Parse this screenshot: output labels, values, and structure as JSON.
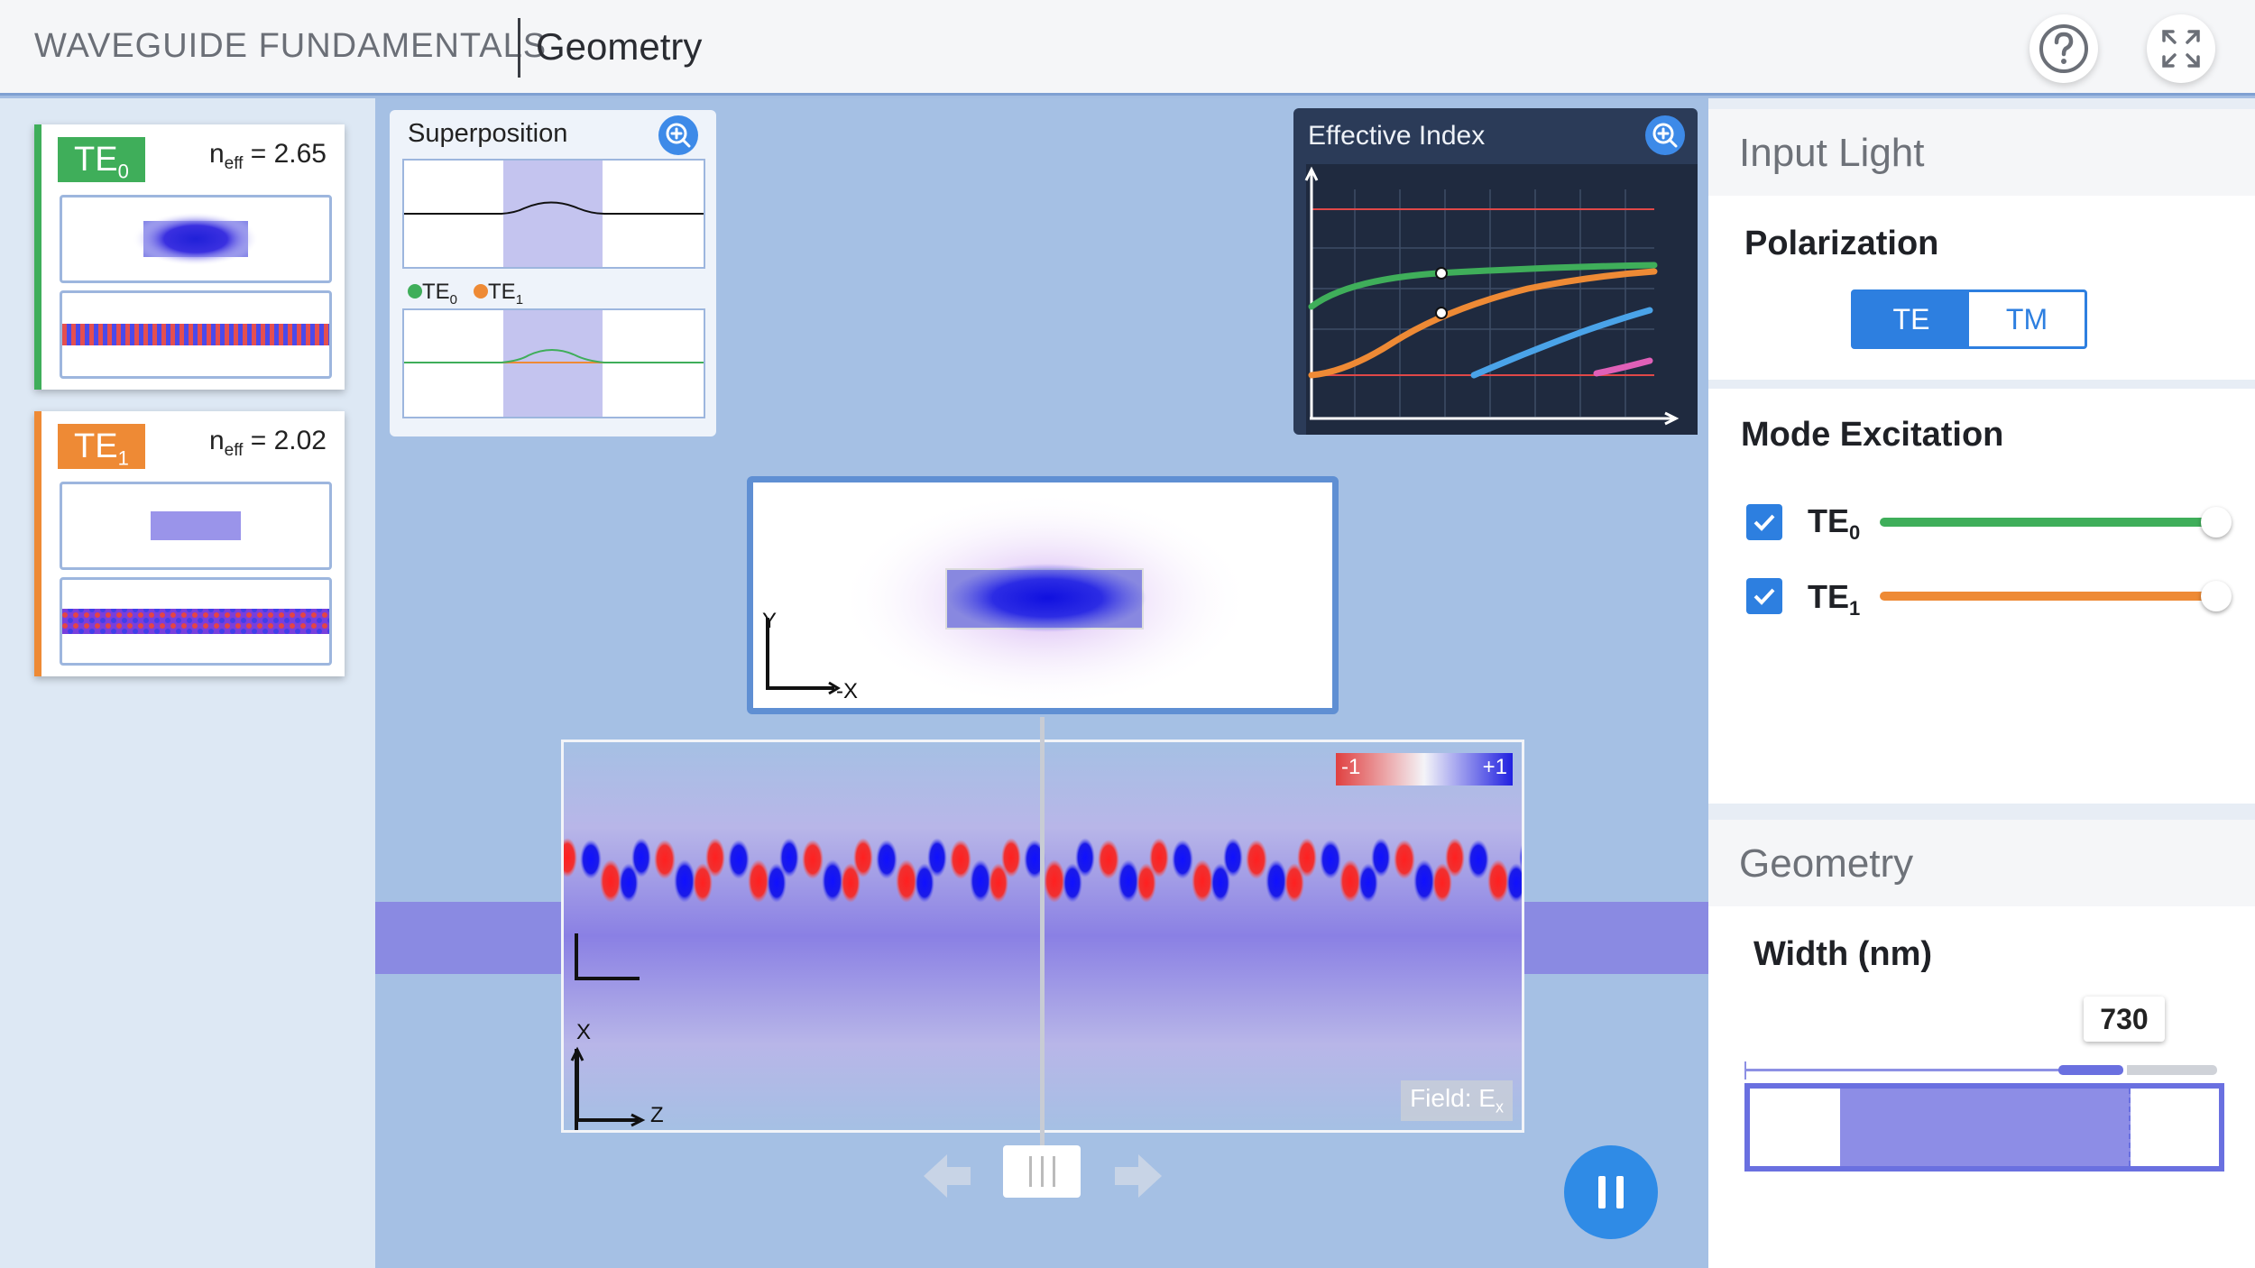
{
  "header": {
    "app_title": "WAVEGUIDE FUNDAMENTALS",
    "screen_title": "Geometry",
    "help_icon": "help-circle-icon",
    "fullscreen_icon": "expand-icon"
  },
  "modes": [
    {
      "badge": "TE",
      "sub": "0",
      "neff_label": "n",
      "neff_sub": "eff",
      "neff_value": "= 2.65",
      "color": "#3fae5a"
    },
    {
      "badge": "TE",
      "sub": "1",
      "neff_label": "n",
      "neff_sub": "eff",
      "neff_value": "= 2.02",
      "color": "#ee8a35"
    }
  ],
  "superposition": {
    "title": "Superposition",
    "legend": [
      {
        "name": "TE",
        "sub": "0",
        "color": "#3fae5a"
      },
      {
        "name": "TE",
        "sub": "1",
        "color": "#ee8a35"
      }
    ],
    "zoom_icon": "zoom-in-icon"
  },
  "effective_index": {
    "title": "Effective Index",
    "zoom_icon": "zoom-in-icon",
    "curve_colors": [
      "#3fae5a",
      "#ee8a35",
      "#4aa3e8",
      "#e060b8"
    ]
  },
  "mode_view": {
    "y_axis": "Y",
    "x_axis": "-X"
  },
  "field_view": {
    "colorbar_min": "-1",
    "colorbar_max": "+1",
    "x_axis": "X",
    "z_axis": "Z",
    "field_label": "Field: E",
    "field_sub": "x"
  },
  "controls": {
    "pause_icon": "pause-icon",
    "prev_icon": "arrow-left-icon",
    "next_icon": "arrow-right-icon",
    "scrub_icon": "scrub-handle-icon"
  },
  "input_light": {
    "title": "Input Light",
    "polarization_label": "Polarization",
    "te": "TE",
    "tm": "TM",
    "selected": "TE",
    "mode_excitation_label": "Mode Excitation",
    "modes": [
      {
        "name": "TE",
        "sub": "0",
        "checked": true,
        "level": 1.0,
        "color": "#3fae5a"
      },
      {
        "name": "TE",
        "sub": "1",
        "checked": true,
        "level": 1.0,
        "color": "#ee8a35"
      }
    ]
  },
  "geometry": {
    "title": "Geometry",
    "width_label": "Width (nm)",
    "width_value": "730",
    "accent": "#6a70e0"
  }
}
